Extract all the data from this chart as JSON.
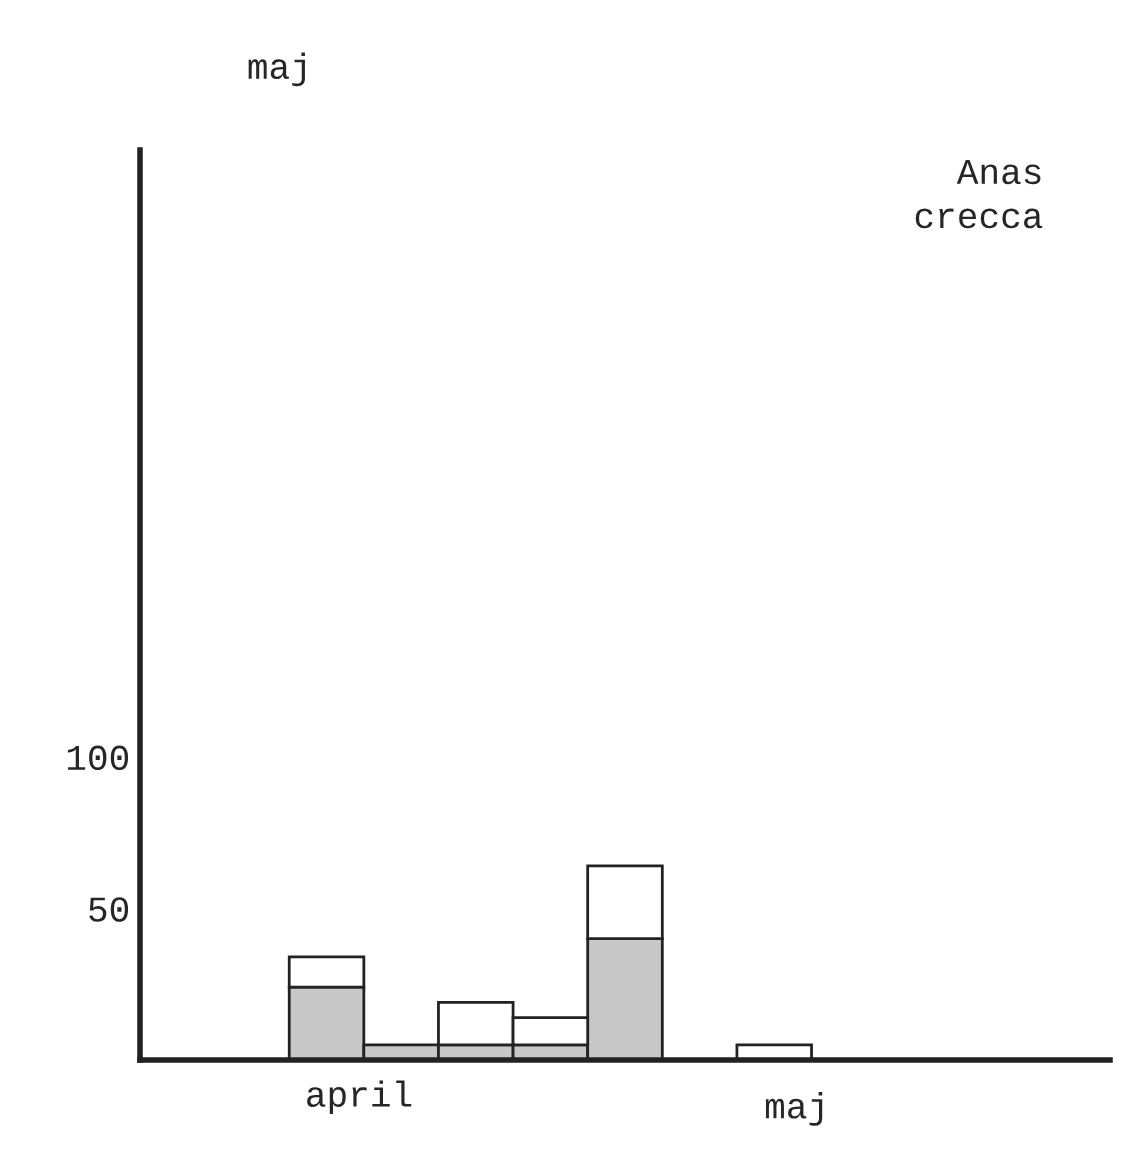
{
  "chart_data": {
    "type": "bar",
    "stacked": true,
    "categories": [
      null,
      null,
      null,
      null,
      null,
      null,
      null,
      null,
      null,
      null,
      null,
      null,
      null
    ],
    "series": [
      {
        "color": "#c8c8c8",
        "values": [
          null,
          null,
          24,
          5,
          5,
          5,
          40,
          null,
          null,
          null,
          null,
          null,
          null
        ]
      },
      {
        "color": "#ffffff",
        "values": [
          null,
          null,
          10,
          null,
          14,
          9,
          24,
          null,
          5,
          null,
          null,
          null,
          null
        ]
      }
    ],
    "ylim": [
      0,
      300
    ],
    "yticks": [
      50,
      100
    ],
    "tick_labels": "y",
    "annotations": [
      "maj",
      "Anas\ncrecca",
      "april",
      "maj"
    ]
  }
}
